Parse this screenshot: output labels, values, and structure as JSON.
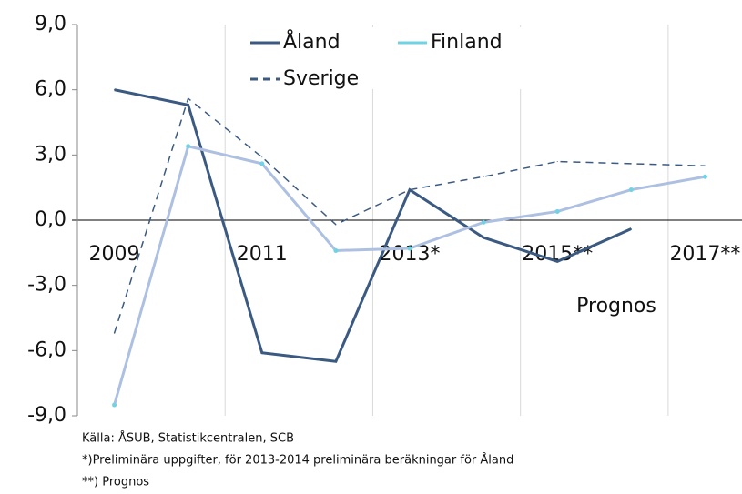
{
  "chart_data": {
    "type": "line",
    "categories": [
      "2009",
      null,
      "2011",
      null,
      "2013*",
      null,
      "2015**",
      null,
      "2017**"
    ],
    "series": [
      {
        "name": "Åland",
        "color": "#3b5a82",
        "style": "solid",
        "values": [
          6.0,
          5.3,
          -6.1,
          -6.5,
          1.4,
          -0.8,
          -1.9,
          -0.4,
          null
        ]
      },
      {
        "name": "Finland",
        "color": "#adc0e2",
        "style": "solid",
        "values": [
          -8.5,
          3.4,
          2.6,
          -1.4,
          -1.3,
          -0.1,
          0.4,
          1.4,
          2.0
        ]
      },
      {
        "name": "Sverige",
        "color": "#3b5a82",
        "style": "dashed",
        "values": [
          -5.2,
          5.6,
          2.9,
          -0.2,
          1.4,
          2.0,
          2.7,
          2.6,
          2.5
        ]
      }
    ],
    "ylim": [
      -9,
      9
    ],
    "yticks": [
      {
        "value": -9,
        "label": "-9,0"
      },
      {
        "value": -6,
        "label": "-6,0"
      },
      {
        "value": -3,
        "label": "-3,0"
      },
      {
        "value": 0,
        "label": "0,0"
      },
      {
        "value": 3,
        "label": "3,0"
      },
      {
        "value": 6,
        "label": "6,0"
      },
      {
        "value": 9,
        "label": "9,0"
      }
    ],
    "annotation": "Prognos",
    "notes": [
      "Källa: ÅSUB, Statistikcentralen, SCB",
      "*)Preliminära uppgifter, för 2013-2014 preliminära beräkningar för Åland",
      "**) Prognos"
    ]
  }
}
